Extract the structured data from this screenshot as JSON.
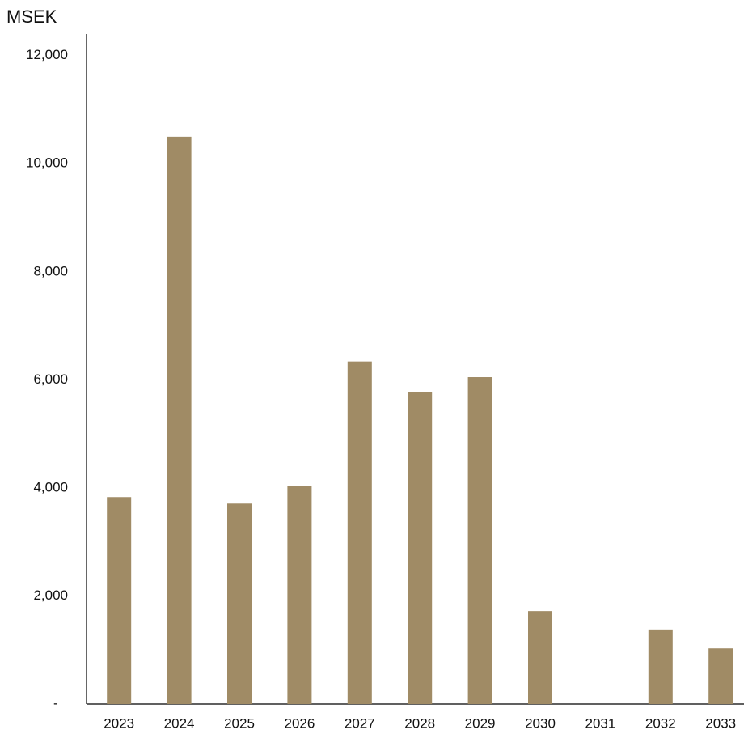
{
  "chart_data": {
    "type": "bar",
    "y_axis_label": "MSEK",
    "categories": [
      "2023",
      "2024",
      "2025",
      "2026",
      "2027",
      "2028",
      "2029",
      "2030",
      "2031",
      "2032",
      "2033"
    ],
    "values": [
      3830,
      10500,
      3710,
      4030,
      6340,
      5770,
      6050,
      1720,
      0,
      1380,
      1030
    ],
    "color": "#a08b65",
    "ylim": [
      0,
      12400
    ],
    "yticks": [
      {
        "value": 0,
        "label": "-"
      },
      {
        "value": 2000,
        "label": "2,000"
      },
      {
        "value": 4000,
        "label": "4,000"
      },
      {
        "value": 6000,
        "label": "6,000"
      },
      {
        "value": 8000,
        "label": "8,000"
      },
      {
        "value": 10000,
        "label": "10,000"
      },
      {
        "value": 12000,
        "label": "12,000"
      }
    ],
    "grid": false
  }
}
